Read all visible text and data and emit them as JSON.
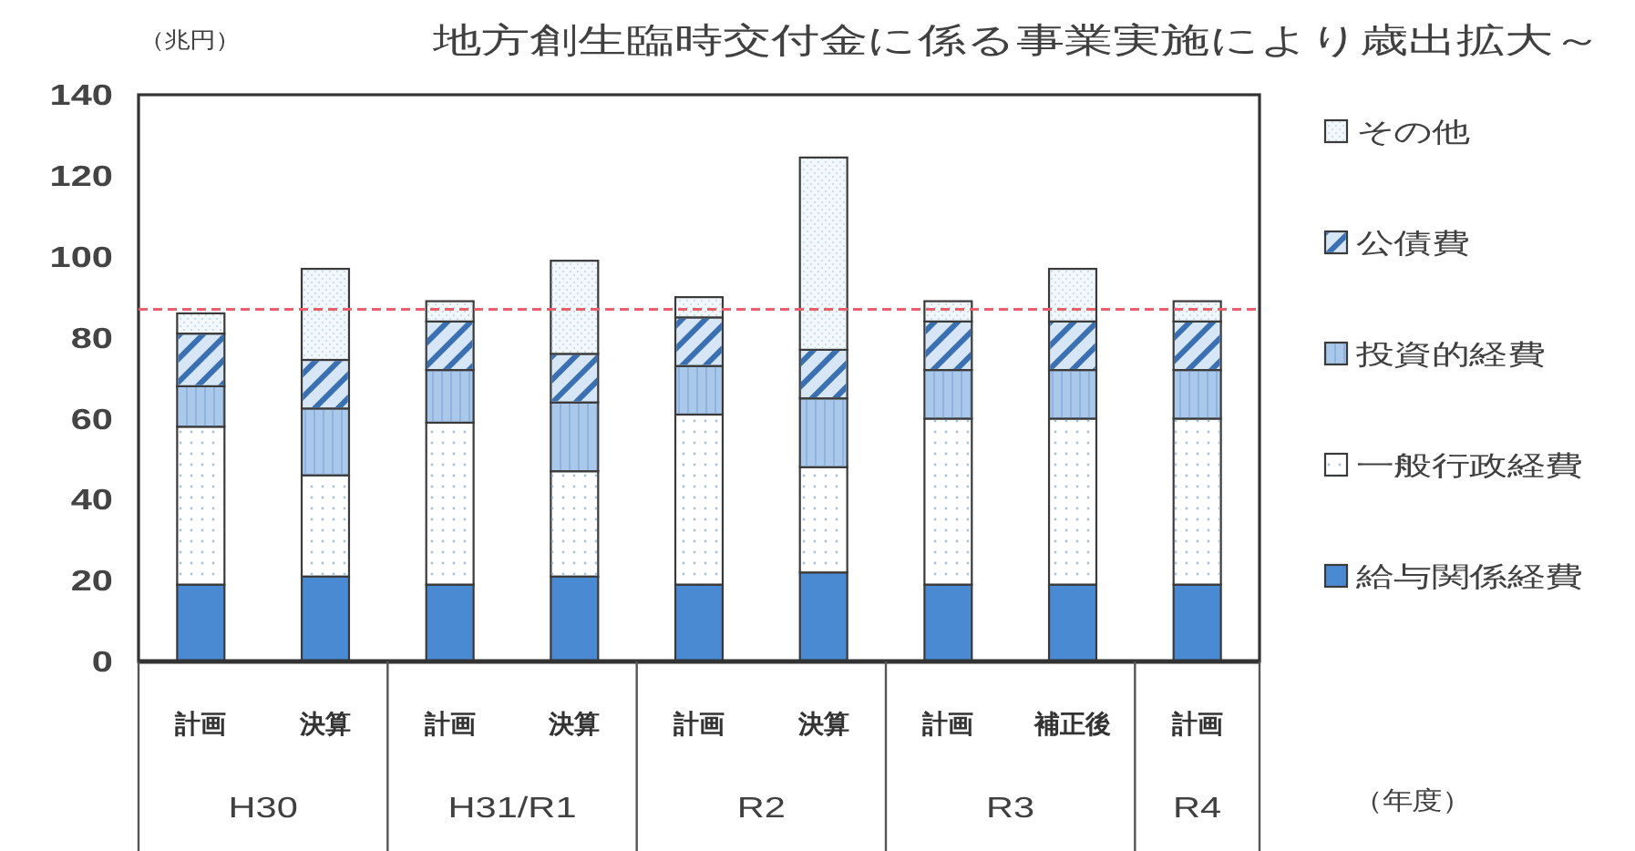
{
  "chart_data": {
    "type": "bar",
    "title": "地方創生臨時交付金に係る事業実施により歳出拡大～",
    "xlabel": "（年度）",
    "ylabel": "（兆円）",
    "categories": [
      "計画",
      "決算",
      "計画",
      "決算",
      "計画",
      "決算",
      "計画",
      "補正後",
      "計画"
    ],
    "annotations": [
      "H30",
      "H31/R1",
      "R2",
      "R3",
      "R4"
    ],
    "stacked": true,
    "ylim": [
      0,
      140
    ],
    "yticks": [
      0,
      20,
      40,
      60,
      80,
      100,
      120,
      140
    ],
    "legend": "right",
    "ref_lines": [
      {
        "axis": "y",
        "value": 87,
        "color": "#e8606e",
        "line_style": "dashed"
      }
    ],
    "series": [
      {
        "name": "給与関係経費",
        "color": "#4a8ad2",
        "values": [
          19,
          21,
          19,
          21,
          19,
          22,
          19,
          19,
          19
        ]
      },
      {
        "name": "一般行政経費",
        "color": "#ffffff",
        "values": [
          39,
          25,
          40,
          26,
          42,
          26,
          41,
          41,
          41
        ]
      },
      {
        "name": "投資的経費",
        "color": "#a9c8ea",
        "values": [
          10,
          16.5,
          13,
          17,
          12,
          17,
          12,
          12,
          12
        ]
      },
      {
        "name": "公債費",
        "color": "#d6e6f6",
        "values": [
          13,
          12,
          12,
          12,
          12,
          12,
          12,
          12,
          12
        ]
      },
      {
        "name": "その他",
        "color": "#f2f7fc",
        "values": [
          5,
          22.5,
          5,
          23,
          5,
          47.5,
          5,
          13,
          5
        ]
      }
    ]
  }
}
